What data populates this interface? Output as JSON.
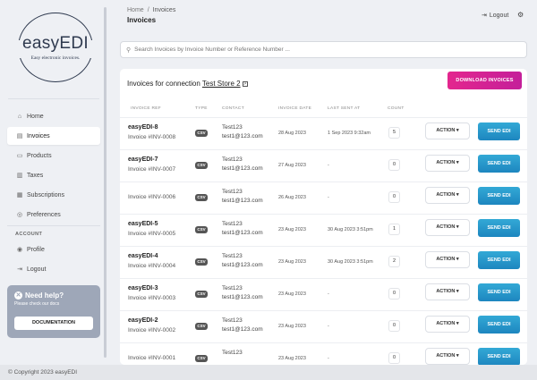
{
  "logo": {
    "title": "easyEDI",
    "subtitle": "Easy electronic invoices."
  },
  "sidebar": {
    "items": [
      {
        "icon": "home-icon",
        "glyph": "⌂",
        "label": "Home"
      },
      {
        "icon": "invoices-icon",
        "glyph": "▤",
        "label": "Invoices",
        "active": true
      },
      {
        "icon": "products-icon",
        "glyph": "▭",
        "label": "Products"
      },
      {
        "icon": "taxes-icon",
        "glyph": "▥",
        "label": "Taxes"
      },
      {
        "icon": "subscriptions-icon",
        "glyph": "▦",
        "label": "Subscriptions"
      },
      {
        "icon": "preferences-icon",
        "glyph": "◎",
        "label": "Preferences"
      }
    ],
    "account_label": "ACCOUNT",
    "account_items": [
      {
        "icon": "profile-icon",
        "glyph": "◉",
        "label": "Profile"
      },
      {
        "icon": "logout-icon",
        "glyph": "⇥",
        "label": "Logout"
      }
    ],
    "help": {
      "title": "Need help?",
      "subtitle": "Please check our docs",
      "button": "DOCUMENTATION"
    }
  },
  "header": {
    "breadcrumb": {
      "root": "Home",
      "separator": "/",
      "current": "Invoices"
    },
    "title": "Invoices",
    "logout": "Logout"
  },
  "search": {
    "placeholder": "Search Invoices by Invoice Number or Reference Number ..."
  },
  "card": {
    "connection_prefix": "Invoices for connection",
    "connection_name": "Test Store 2",
    "download_button": "DOWNLOAD INVOICES",
    "columns": [
      "INVOICE REF",
      "TYPE",
      "CONTACT",
      "INVOICE DATE",
      "LAST SENT AT",
      "COUNT"
    ],
    "rows": [
      {
        "ref": "easyEDI-8",
        "invoice": "Invoice #INV-0008",
        "type": "CSV",
        "contact": "Test123",
        "email": "test1@123.com",
        "date": "28 Aug 2023",
        "sent": "1 Sep 2023 9:32am",
        "count": "5",
        "action": "ACTION ▾",
        "send": "SEND EDI"
      },
      {
        "ref": "easyEDI-7",
        "invoice": "Invoice #INV-0007",
        "type": "CSV",
        "contact": "Test123",
        "email": "test1@123.com",
        "date": "27 Aug 2023",
        "sent": "-",
        "count": "0",
        "action": "ACTION ▾",
        "send": "SEND EDI"
      },
      {
        "ref": "",
        "invoice": "Invoice #INV-0006",
        "type": "CSV",
        "contact": "Test123",
        "email": "test1@123.com",
        "date": "26 Aug 2023",
        "sent": "-",
        "count": "0",
        "action": "ACTION ▾",
        "send": "SEND EDI"
      },
      {
        "ref": "easyEDI-5",
        "invoice": "Invoice #INV-0005",
        "type": "CSV",
        "contact": "Test123",
        "email": "test1@123.com",
        "date": "23 Aug 2023",
        "sent": "30 Aug 2023 3:51pm",
        "count": "1",
        "action": "ACTION ▾",
        "send": "SEND EDI"
      },
      {
        "ref": "easyEDI-4",
        "invoice": "Invoice #INV-0004",
        "type": "CSV",
        "contact": "Test123",
        "email": "test1@123.com",
        "date": "23 Aug 2023",
        "sent": "30 Aug 2023 3:51pm",
        "count": "2",
        "action": "ACTION ▾",
        "send": "SEND EDI"
      },
      {
        "ref": "easyEDI-3",
        "invoice": "Invoice #INV-0003",
        "type": "CSV",
        "contact": "Test123",
        "email": "test1@123.com",
        "date": "23 Aug 2023",
        "sent": "-",
        "count": "0",
        "action": "ACTION ▾",
        "send": "SEND EDI"
      },
      {
        "ref": "easyEDI-2",
        "invoice": "Invoice #INV-0002",
        "type": "CSV",
        "contact": "Test123",
        "email": "test1@123.com",
        "date": "23 Aug 2023",
        "sent": "-",
        "count": "0",
        "action": "ACTION ▾",
        "send": "SEND EDI"
      },
      {
        "ref": "",
        "invoice": "Invoice #INV-0001",
        "type": "CSV",
        "contact": "Test123",
        "email": "",
        "date": "23 Aug 2023",
        "sent": "-",
        "count": "0",
        "action": "ACTION ▾",
        "send": "SEND EDI"
      }
    ]
  },
  "footer": {
    "copyright": "© Copyright 2023 easyEDI"
  },
  "colors": {
    "accent_magenta": "#d6238f",
    "send_blue": "#2595cc",
    "sidebar_bg": "#eef0f4"
  }
}
